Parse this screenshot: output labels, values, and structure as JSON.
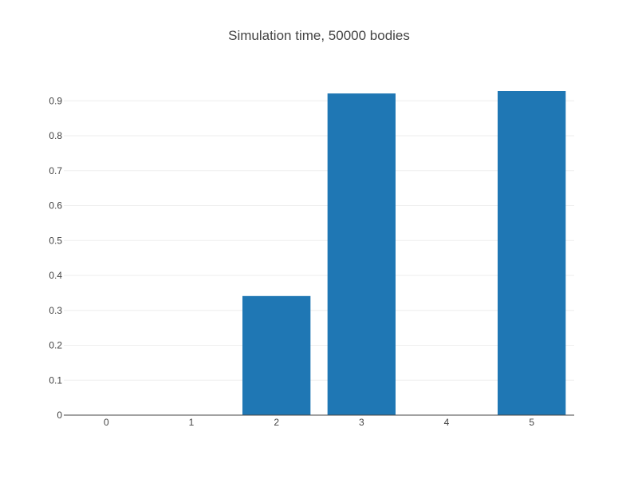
{
  "chart_data": {
    "type": "bar",
    "title": "Simulation time, 50000 bodies",
    "xlabel": "",
    "ylabel": "",
    "categories": [
      "0",
      "1",
      "2",
      "3",
      "4",
      "5"
    ],
    "values": [
      0,
      0,
      0.341,
      0.921,
      0,
      0.928
    ],
    "ylim": [
      0,
      0.96
    ],
    "yticks": [
      0,
      0.1,
      0.2,
      0.3,
      0.4,
      0.5,
      0.6,
      0.7,
      0.8,
      0.9
    ],
    "ytick_labels": [
      "0",
      "0.1",
      "0.2",
      "0.3",
      "0.4",
      "0.5",
      "0.6",
      "0.7",
      "0.8",
      "0.9"
    ],
    "grid": true,
    "legend": "none",
    "colors": {
      "bar": "#1f77b4",
      "grid": "#eeeeee",
      "axis": "#444444",
      "text": "#444444"
    }
  }
}
